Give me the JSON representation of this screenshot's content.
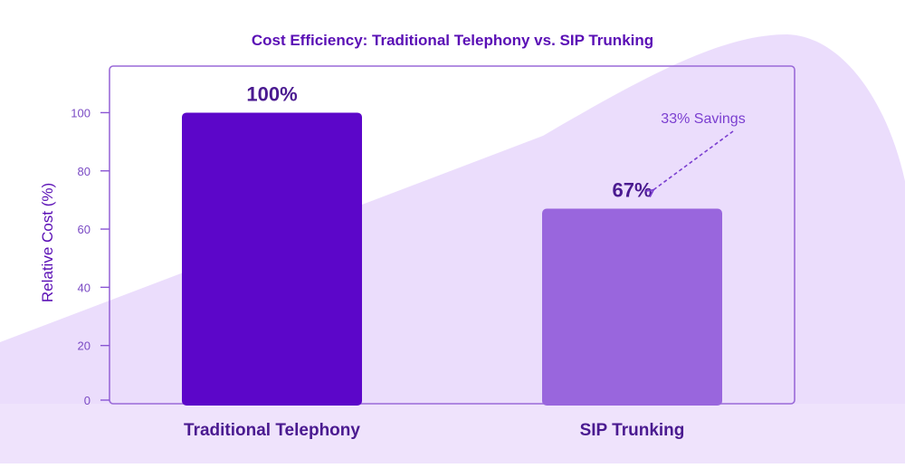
{
  "colors": {
    "title": "#5a0fb5",
    "axis": "#8a55d4",
    "tick_label": "#7a4ac4",
    "frame": "#9a6ad8",
    "bar_primary": "#5c06c9",
    "bar_secondary": "#9966dd",
    "data_label": "#4a1a90",
    "annotation": "#7b3fd0",
    "bg_shape": "#e7d7fb",
    "bg_shape_light": "#f3ecfd"
  },
  "chart_data": {
    "type": "bar",
    "title": "Cost Efficiency: Traditional Telephony vs. SIP Trunking",
    "xlabel": "",
    "ylabel": "Relative Cost (%)",
    "categories": [
      "Traditional Telephony",
      "SIP Trunking"
    ],
    "values": [
      100,
      67
    ],
    "data_labels": [
      "100%",
      "67%"
    ],
    "ylim": [
      0,
      116
    ],
    "yticks": [
      0,
      20,
      40,
      60,
      80,
      100
    ],
    "grid": false,
    "legend": "none",
    "annotation": {
      "text": "33% Savings",
      "target_category": "SIP Trunking",
      "arrow_style": "dashed"
    }
  }
}
